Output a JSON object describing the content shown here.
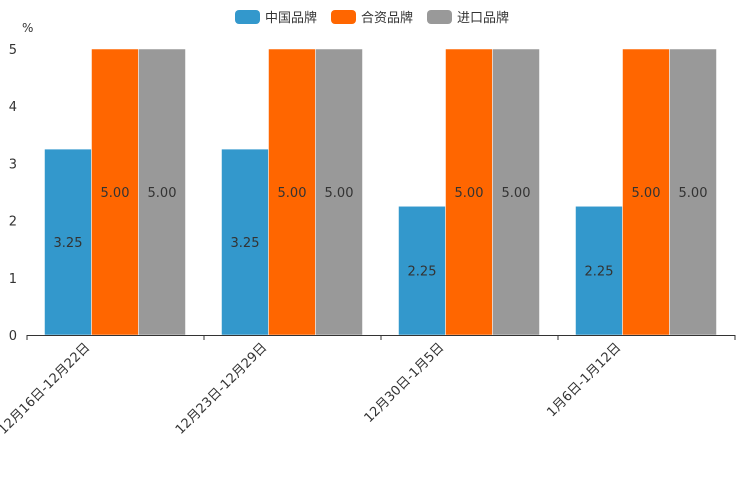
{
  "chart_data": {
    "type": "bar",
    "title": "",
    "unit": "%",
    "xlabel": "",
    "ylabel": "%",
    "ylim": [
      0,
      5
    ],
    "yticks": [
      "0",
      "1",
      "2",
      "3",
      "4",
      "5"
    ],
    "categories": [
      "12月16日-12月22日",
      "12月23日-12月29日",
      "12月30日-1月5日",
      "1月6日-1月12日"
    ],
    "series": [
      {
        "name": "中国品牌",
        "color": "#3398CC",
        "values": [
          3.25,
          3.25,
          2.25,
          2.25
        ],
        "labels": [
          "3.25",
          "3.25",
          "2.25",
          "2.25"
        ]
      },
      {
        "name": "合资品牌",
        "color": "#FF6600",
        "values": [
          5.0,
          5.0,
          5.0,
          5.0
        ],
        "labels": [
          "5.00",
          "5.00",
          "5.00",
          "5.00"
        ]
      },
      {
        "name": "进口品牌",
        "color": "#999999",
        "values": [
          5.0,
          5.0,
          5.0,
          5.0
        ],
        "labels": [
          "5.00",
          "5.00",
          "5.00",
          "5.00"
        ]
      }
    ],
    "legend_position": "top-center",
    "grid": false
  }
}
